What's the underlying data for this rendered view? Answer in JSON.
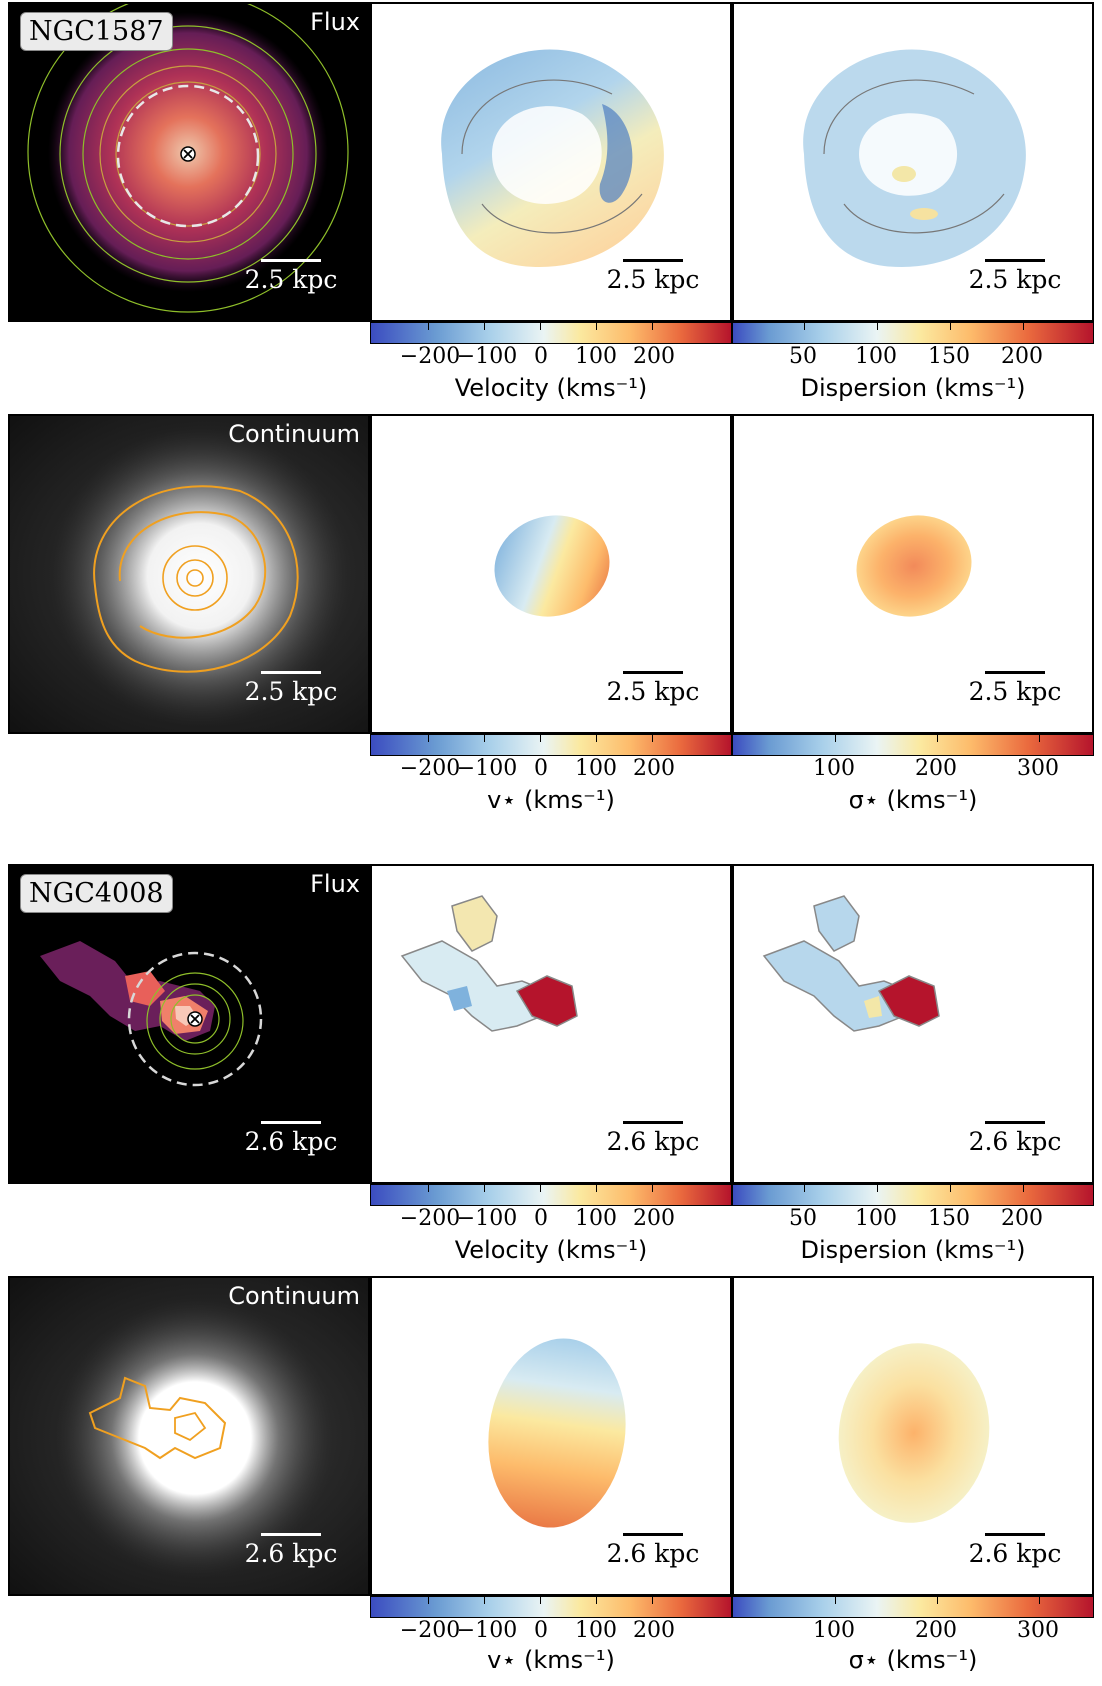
{
  "galaxy1": {
    "name": "NGC1587",
    "flux_label": "Flux",
    "continuum_label": "Continuum",
    "scale": "2.5 kpc"
  },
  "galaxy2": {
    "name": "NGC4008",
    "flux_label": "Flux",
    "continuum_label": "Continuum",
    "scale": "2.6 kpc"
  },
  "colorbars": {
    "velocity": {
      "label": "Velocity (kms⁻¹)",
      "ticks": [
        "−200",
        "−100",
        "0",
        "100",
        "200"
      ]
    },
    "dispersion": {
      "label": "Dispersion (kms⁻¹)",
      "ticks": [
        "50",
        "100",
        "150",
        "200"
      ]
    },
    "stellar_velocity": {
      "label": "v⋆ (kms⁻¹)",
      "ticks": [
        "−200",
        "−100",
        "0",
        "100",
        "200"
      ]
    },
    "stellar_dispersion": {
      "label": "σ⋆ (kms⁻¹)",
      "ticks": [
        "100",
        "200",
        "300"
      ]
    }
  },
  "colors": {
    "contour_gas": "#8fbf2a",
    "contour_stars": "#f0a020",
    "flux_high": "#f4a080",
    "flux_low": "#6a1f5a"
  }
}
